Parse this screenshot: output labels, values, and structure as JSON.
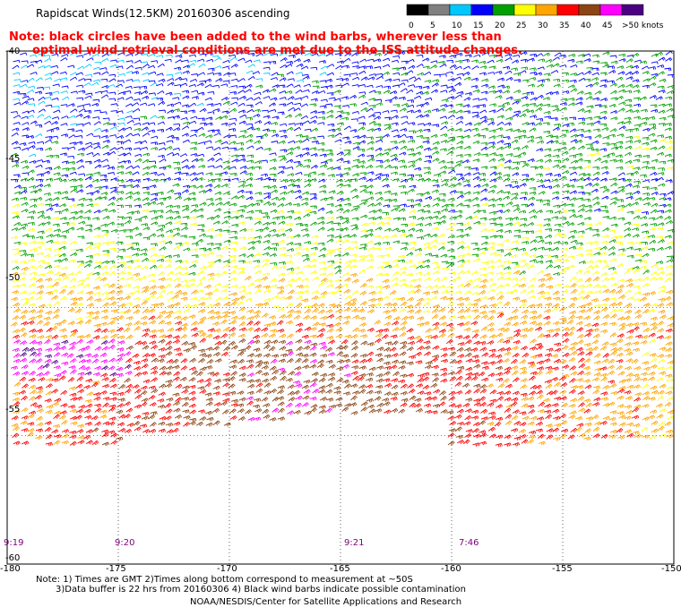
{
  "title": "Rapidscat Winds(12.5KM) 20160306 ascending",
  "note": {
    "line1": "Note: black circles have been added to the wind barbs, wherever less than",
    "line2": "optimal wind retrieval conditions are met due to the ISS attitude changes."
  },
  "legend": {
    "ticks": [
      "0",
      "5",
      "10",
      "15",
      "20",
      "25",
      "30",
      "35",
      "40",
      "45",
      ">50 knots"
    ],
    "colors": [
      "#000000",
      "#808080",
      "#00c8ff",
      "#0000ff",
      "#00a000",
      "#ffff00",
      "#ffa500",
      "#ff0000",
      "#8b4513",
      "#ff00ff",
      "#4b0082"
    ]
  },
  "map": {
    "lon_range": [
      -180,
      -150
    ],
    "lat_range": [
      -60,
      -40
    ],
    "x_ticks": [
      "-180",
      "-175",
      "-170",
      "-165",
      "-160",
      "-155",
      "-150"
    ],
    "y_ticks": [
      "-40",
      "-45",
      "-50",
      "-55",
      "-60"
    ],
    "pass_times": [
      "9:19",
      "9:20",
      "9:21",
      "7:46"
    ]
  },
  "footer": {
    "line1": "Note: 1) Times are GMT 2)Times along bottom correspond to measurement at ~50S",
    "line2": "3)Data buffer is 22 hrs from 20160306 4) Black wind barbs indicate possible contamination",
    "line3": "NOAA/NESDIS/Center for Satellite Applications and Research"
  }
}
